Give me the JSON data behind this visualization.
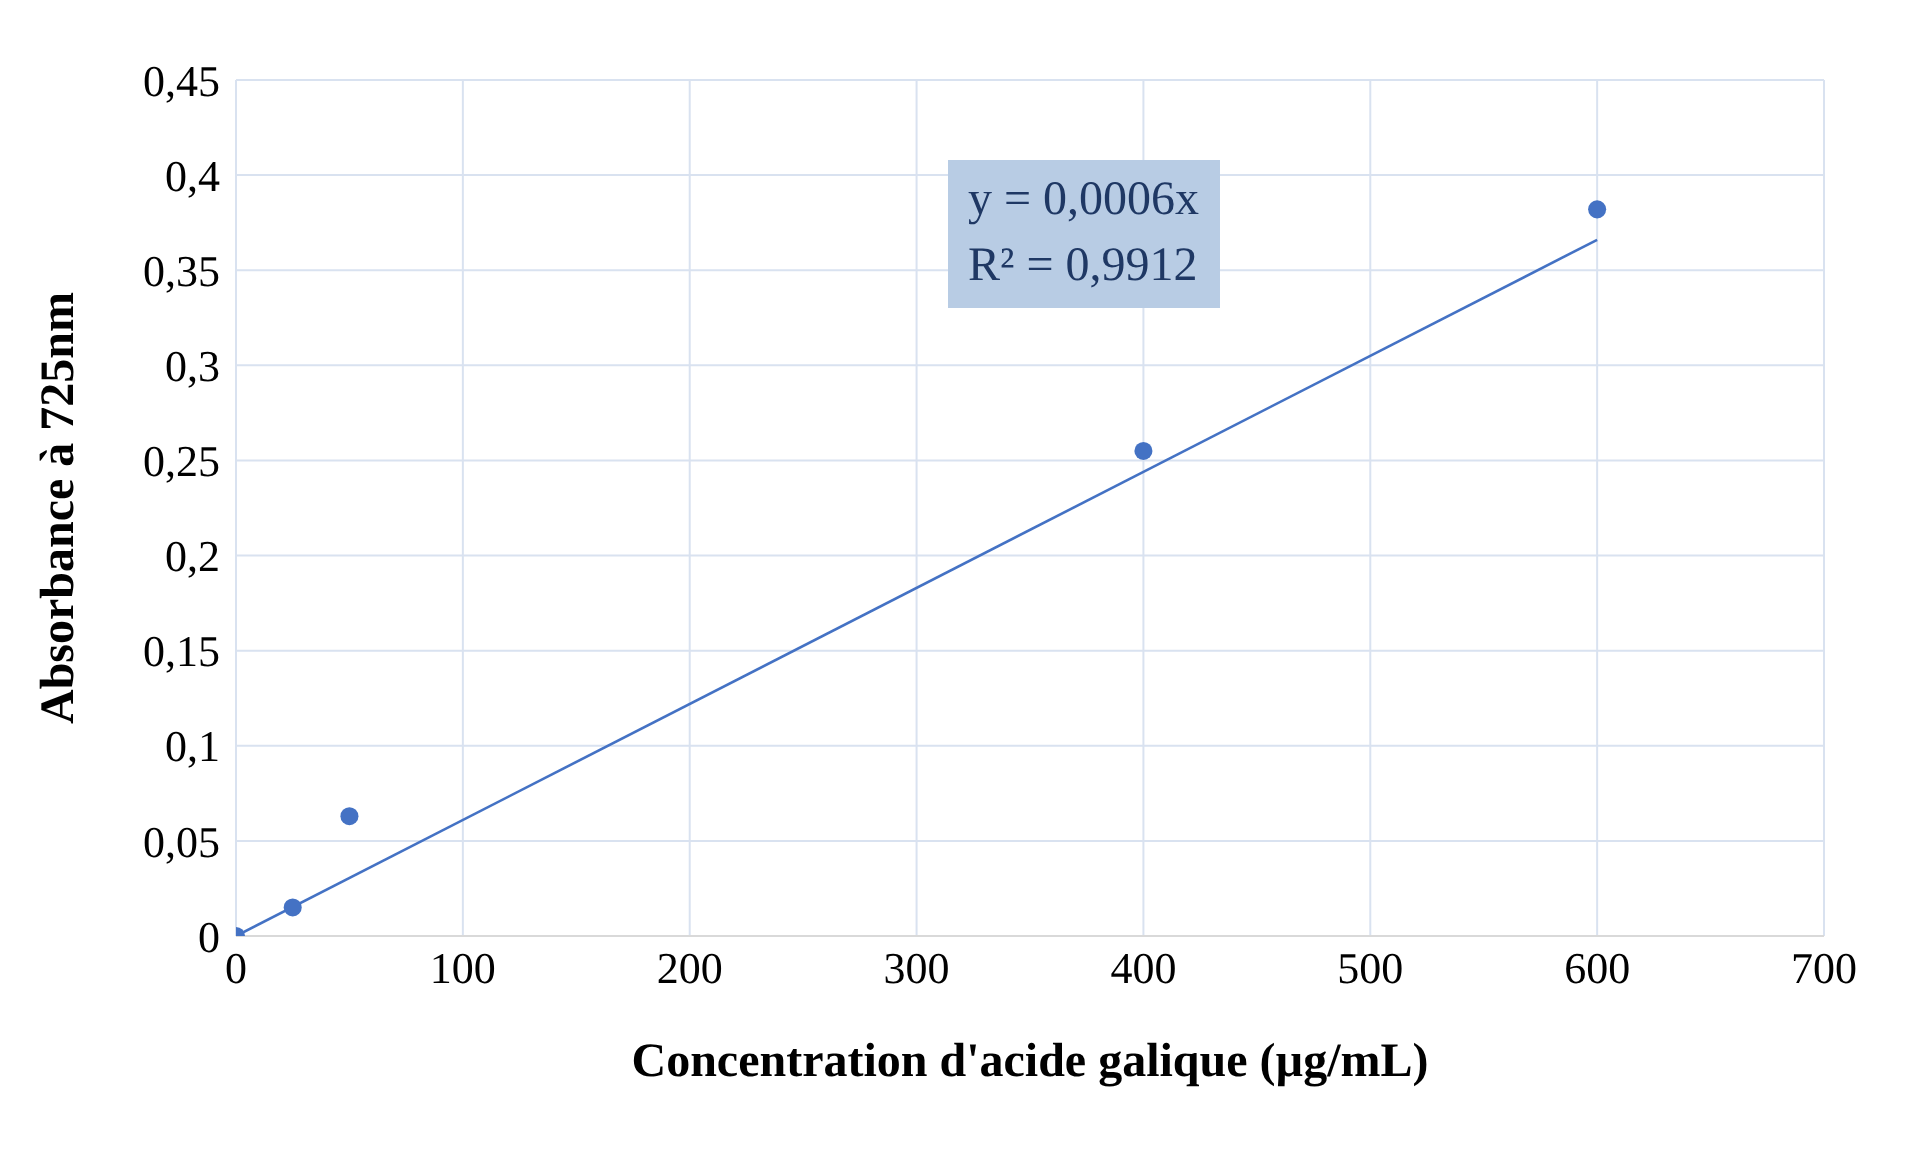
{
  "chart_data": {
    "type": "scatter",
    "xlabel": "Concentration d'acide galique (µg/mL)",
    "ylabel": "Absorbance à 725nm",
    "series": [
      {
        "type": "scatter",
        "color": "#4472c4",
        "x": [
          0,
          25,
          50,
          400,
          600
        ],
        "values": [
          0,
          0.015,
          0.063,
          0.255,
          0.382
        ],
        "marker": "circle"
      },
      {
        "type": "line",
        "color": "#4472c4",
        "x": [
          0,
          600
        ],
        "values": [
          0,
          0.366
        ],
        "marker": "none",
        "line_style": "solid"
      }
    ],
    "annotations": [
      "y = 0,0006x",
      "R² = 0,9912"
    ],
    "xlim": [
      0,
      700
    ],
    "xticks": [
      0,
      100,
      200,
      300,
      400,
      500,
      600,
      700
    ],
    "ylim": [
      0,
      0.45
    ],
    "yticks": [
      0,
      {
        "value": 0.05,
        "label": "0,05"
      },
      {
        "value": 0.1,
        "label": "0,1"
      },
      {
        "value": 0.15,
        "label": "0,15"
      },
      {
        "value": 0.2,
        "label": "0,2"
      },
      {
        "value": 0.25,
        "label": "0,25"
      },
      {
        "value": 0.3,
        "label": "0,3"
      },
      {
        "value": 0.35,
        "label": "0,35"
      },
      {
        "value": 0.4,
        "label": "0,4"
      },
      {
        "value": 0.45,
        "label": "0,45"
      }
    ],
    "grid": true,
    "legend": false
  }
}
